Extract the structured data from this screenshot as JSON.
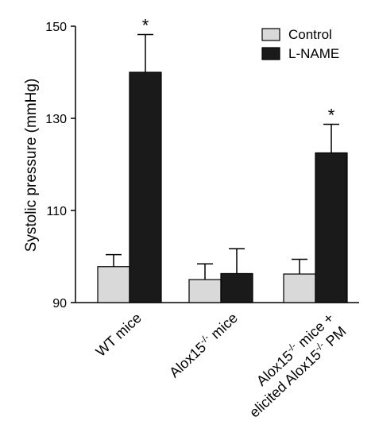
{
  "chart_data": {
    "type": "bar",
    "title": "",
    "xlabel": "",
    "ylabel": "Systolic pressure (mmHg)",
    "ylim": [
      90,
      150
    ],
    "yticks": [
      90,
      110,
      130,
      150
    ],
    "grid": false,
    "legend_position": "top-right",
    "categories": [
      "WT mice",
      "Alox15-/- mice",
      "Alox15-/- mice + elicited Alox15-/- PM"
    ],
    "category_label_lines": [
      [
        {
          "text": "WT mice"
        }
      ],
      [
        {
          "text": "Alox15"
        },
        {
          "sup": "-/-"
        },
        {
          "text": "  mice"
        }
      ],
      [
        {
          "text": "Alox15"
        },
        {
          "sup": "-/-"
        },
        {
          "text": " mice +"
        }
      ]
    ],
    "category_label_line2": [
      null,
      null,
      [
        {
          "text": "elicited Alox15"
        },
        {
          "sup": "-/-"
        },
        {
          "text": " PM"
        }
      ]
    ],
    "series": [
      {
        "name": "Control",
        "color": "#d9d9d9",
        "values": [
          97.8,
          95,
          96.2
        ],
        "errors": [
          2.6,
          3.4,
          3.2
        ]
      },
      {
        "name": "L-NAME",
        "color": "#1a1a1a",
        "values": [
          140,
          96.3,
          122.5
        ],
        "errors": [
          8.2,
          5.4,
          6.2
        ]
      }
    ],
    "annotations": [
      {
        "category_index": 0,
        "series_index": 1,
        "text": "*"
      },
      {
        "category_index": 2,
        "series_index": 1,
        "text": "*"
      }
    ]
  }
}
